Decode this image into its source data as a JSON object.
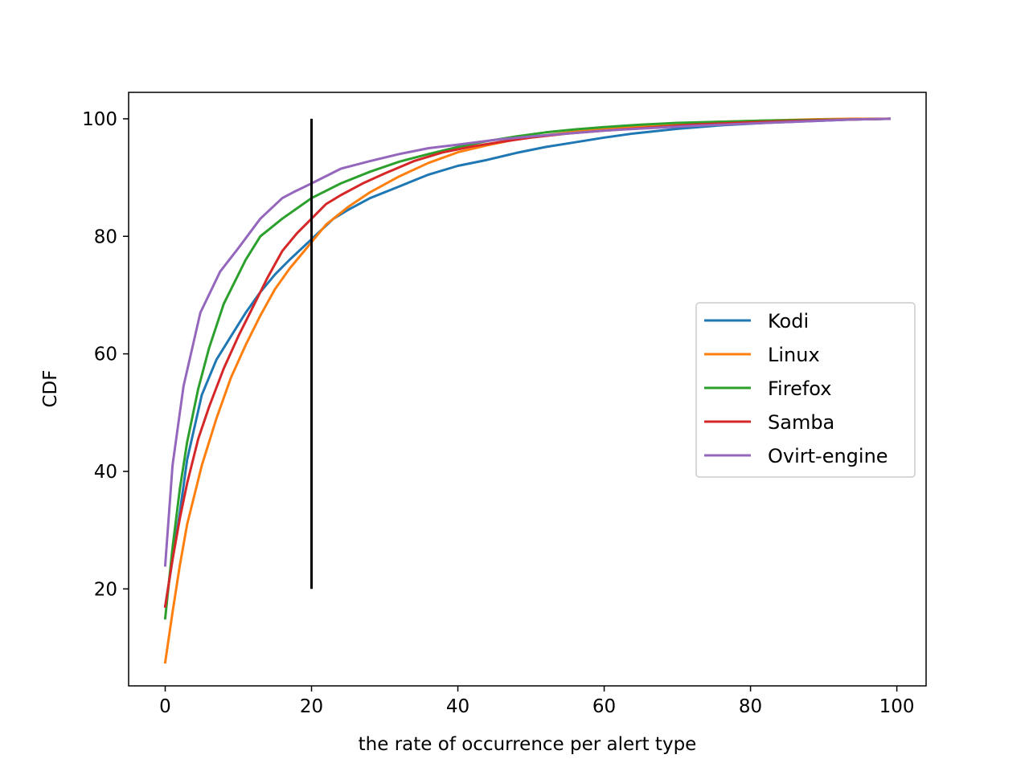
{
  "chart_data": {
    "type": "line",
    "xlabel": "the rate of occurrence per alert type",
    "ylabel": "CDF",
    "xlim": [
      -5,
      104
    ],
    "ylim": [
      3.5,
      104.5
    ],
    "xticks": [
      0,
      20,
      40,
      60,
      80,
      100
    ],
    "yticks": [
      20,
      40,
      60,
      80,
      100
    ],
    "grid": false,
    "legend_position": "center-right",
    "vline": {
      "x": 20,
      "y_from": 20,
      "y_to": 100,
      "color": "#000000"
    },
    "series": [
      {
        "name": "Kodi",
        "color": "#1f77b4",
        "x": [
          0,
          2,
          3,
          5,
          7,
          9,
          11,
          13,
          15,
          17,
          20,
          23,
          25,
          28,
          32,
          36,
          40,
          44,
          48,
          52,
          56,
          60,
          64,
          70,
          76,
          82,
          88,
          94,
          99
        ],
        "y": [
          17,
          33,
          42,
          53,
          59,
          63,
          67,
          70.5,
          73.5,
          76,
          79.5,
          83,
          84.5,
          86.5,
          88.5,
          90.5,
          92,
          93,
          94.2,
          95.2,
          96,
          96.8,
          97.5,
          98.3,
          98.9,
          99.3,
          99.6,
          99.9,
          100
        ]
      },
      {
        "name": "Linux",
        "color": "#ff7f0e",
        "x": [
          0,
          1,
          2,
          3,
          5,
          7,
          9,
          11,
          13,
          15,
          17,
          20,
          22,
          25,
          28,
          32,
          36,
          40,
          44,
          48,
          52,
          56,
          60,
          65,
          70,
          76,
          82,
          88,
          94,
          99
        ],
        "y": [
          7.5,
          16,
          24,
          31,
          41,
          49,
          56,
          61.5,
          66.5,
          71,
          74.5,
          79,
          82,
          85,
          87.5,
          90.2,
          92.5,
          94.3,
          95.5,
          96.5,
          97.2,
          97.8,
          98.3,
          98.8,
          99.2,
          99.5,
          99.7,
          99.9,
          100,
          100
        ]
      },
      {
        "name": "Firefox",
        "color": "#2ca02c",
        "x": [
          0,
          1,
          2,
          3,
          4.5,
          6,
          8,
          11,
          13,
          16,
          20,
          24,
          28,
          32,
          36,
          40,
          44,
          48,
          52,
          56,
          60,
          65,
          70,
          76,
          82,
          88,
          94,
          99
        ],
        "y": [
          15,
          27,
          37,
          45,
          54,
          61,
          68.5,
          76,
          80,
          83,
          86.5,
          89,
          91,
          92.7,
          94,
          95.2,
          96.2,
          97,
          97.7,
          98.2,
          98.6,
          99,
          99.3,
          99.5,
          99.7,
          99.8,
          99.9,
          100
        ]
      },
      {
        "name": "Samba",
        "color": "#d62728",
        "x": [
          0,
          1,
          2,
          3,
          4.5,
          6,
          8,
          10,
          12,
          14,
          16,
          18,
          20,
          22,
          24,
          27,
          30,
          34,
          38,
          42,
          46,
          50,
          55,
          60,
          66,
          72,
          80,
          88,
          94,
          99
        ],
        "y": [
          17,
          25,
          32,
          38,
          45.5,
          51,
          57.5,
          63,
          68,
          73,
          77.5,
          80.5,
          83,
          85.5,
          87,
          89,
          90.7,
          92.8,
          94.3,
          95.3,
          96.1,
          96.8,
          97.5,
          98,
          98.5,
          99,
          99.4,
          99.7,
          99.9,
          100
        ]
      },
      {
        "name": "Ovirt-engine",
        "color": "#9467bd",
        "x": [
          0,
          1,
          2.5,
          4.8,
          7.5,
          10,
          13,
          16,
          17.5,
          20,
          24,
          28,
          32,
          36,
          40,
          45,
          50,
          55,
          60,
          66,
          72,
          80,
          88,
          94,
          99
        ],
        "y": [
          24,
          41,
          54.5,
          67,
          74,
          78,
          83,
          86.5,
          87.5,
          89,
          91.5,
          92.8,
          94,
          95,
          95.6,
          96.4,
          97,
          97.5,
          98,
          98.4,
          98.8,
          99.2,
          99.6,
          99.9,
          100
        ]
      }
    ]
  }
}
